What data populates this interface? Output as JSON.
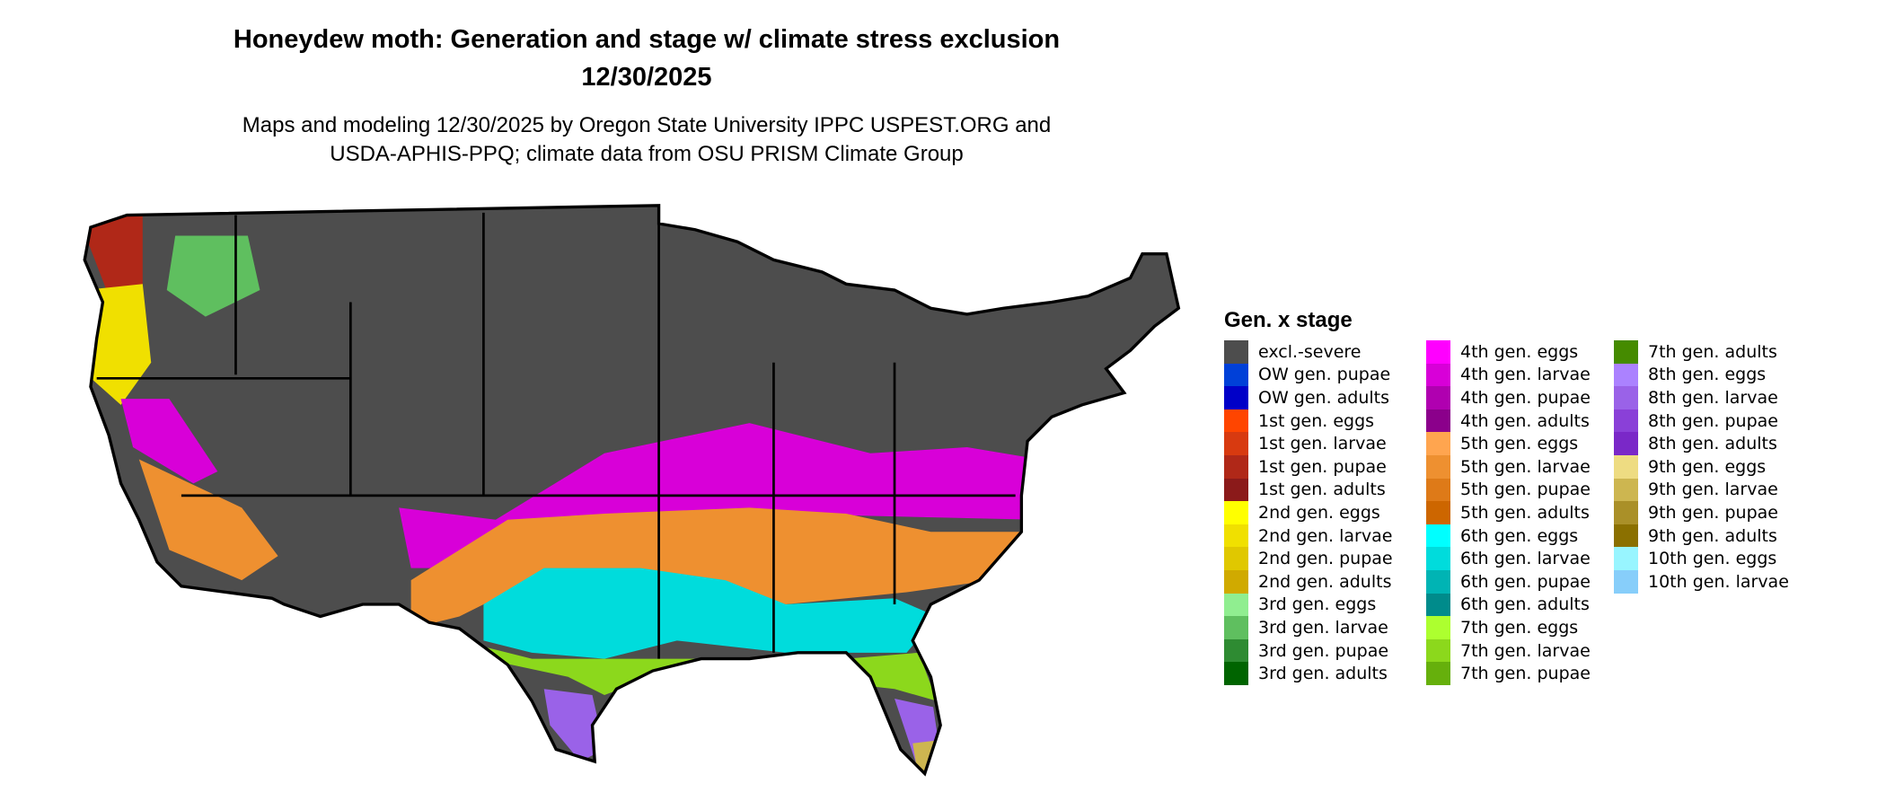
{
  "title": "Honeydew moth: Generation and stage w/ climate stress exclusion",
  "date": "12/30/2025",
  "subtitle_line1": "Maps and modeling 12/30/2025 by Oregon State University IPPC USPEST.ORG and",
  "subtitle_line2": "USDA-APHIS-PPQ; climate data from OSU PRISM Climate Group",
  "legend": {
    "title": "Gen. x stage",
    "columns": [
      [
        {
          "label": "excl.-severe",
          "color": "#4d4d4d"
        },
        {
          "label": "OW gen. pupae",
          "color": "#0040d8"
        },
        {
          "label": "OW gen. adults",
          "color": "#0000c8"
        },
        {
          "label": "1st gen. eggs",
          "color": "#ff4500"
        },
        {
          "label": "1st gen. larvae",
          "color": "#d83a10"
        },
        {
          "label": "1st gen. pupae",
          "color": "#b02818"
        },
        {
          "label": "1st gen. adults",
          "color": "#8b1a1a"
        },
        {
          "label": "2nd gen. eggs",
          "color": "#ffff00"
        },
        {
          "label": "2nd gen. larvae",
          "color": "#f0e000"
        },
        {
          "label": "2nd gen. pupae",
          "color": "#e0c800"
        },
        {
          "label": "2nd gen. adults",
          "color": "#d0aa00"
        },
        {
          "label": "3rd gen. eggs",
          "color": "#90ee90"
        },
        {
          "label": "3rd gen. larvae",
          "color": "#5fbf5f"
        },
        {
          "label": "3rd gen. pupae",
          "color": "#2e8b32"
        },
        {
          "label": "3rd gen. adults",
          "color": "#006400"
        }
      ],
      [
        {
          "label": "4th gen. eggs",
          "color": "#ff00ff"
        },
        {
          "label": "4th gen. larvae",
          "color": "#d800d8"
        },
        {
          "label": "4th gen. pupae",
          "color": "#b000b0"
        },
        {
          "label": "4th gen. adults",
          "color": "#8b008b"
        },
        {
          "label": "5th gen. eggs",
          "color": "#ffa54f"
        },
        {
          "label": "5th gen. larvae",
          "color": "#ee9030"
        },
        {
          "label": "5th gen. pupae",
          "color": "#de7a18"
        },
        {
          "label": "5th gen. adults",
          "color": "#cd6600"
        },
        {
          "label": "6th gen. eggs",
          "color": "#00ffff"
        },
        {
          "label": "6th gen. larvae",
          "color": "#00dcdc"
        },
        {
          "label": "6th gen. pupae",
          "color": "#00b4b4"
        },
        {
          "label": "6th gen. adults",
          "color": "#008b8b"
        },
        {
          "label": "7th gen. eggs",
          "color": "#adff2f"
        },
        {
          "label": "7th gen. larvae",
          "color": "#8cd81c"
        },
        {
          "label": "7th gen. pupae",
          "color": "#66b00c"
        }
      ],
      [
        {
          "label": "7th gen. adults",
          "color": "#458b00"
        },
        {
          "label": "8th gen. eggs",
          "color": "#ab82ff"
        },
        {
          "label": "8th gen. larvae",
          "color": "#9a62e8"
        },
        {
          "label": "8th gen. pupae",
          "color": "#8a40d8"
        },
        {
          "label": "8th gen. adults",
          "color": "#7a28c8"
        },
        {
          "label": "9th gen. eggs",
          "color": "#eedc82"
        },
        {
          "label": "9th gen. larvae",
          "color": "#cdb650"
        },
        {
          "label": "9th gen. pupae",
          "color": "#aa9028"
        },
        {
          "label": "9th gen. adults",
          "color": "#8b7000"
        },
        {
          "label": "10th gen. eggs",
          "color": "#98f5ff"
        },
        {
          "label": "10th gen. larvae",
          "color": "#87cefa"
        }
      ]
    ]
  }
}
